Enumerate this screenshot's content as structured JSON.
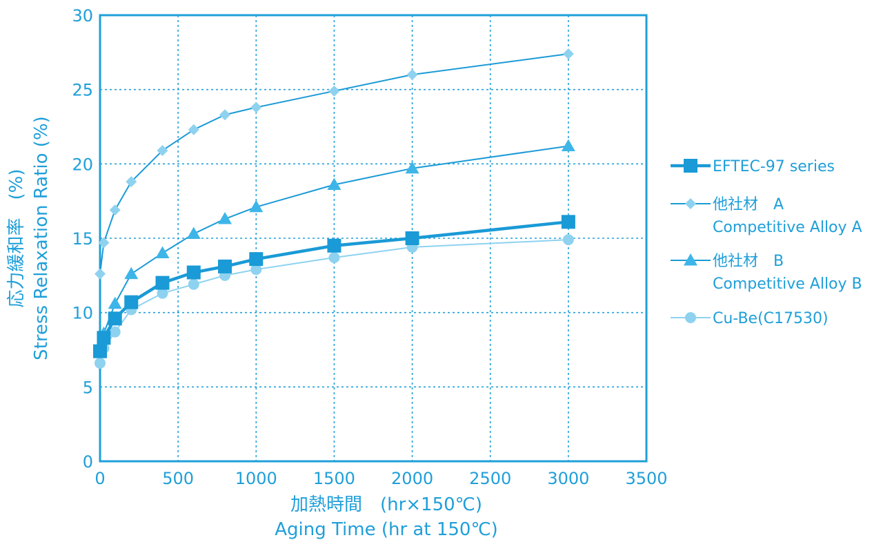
{
  "chart_data": {
    "type": "line",
    "xlabel_jp": "加熱時間　(hr×150℃)",
    "xlabel_en": "Aging Time (hr at 150℃)",
    "ylabel_jp": "応力緩和率　(%)",
    "ylabel_en": "Stress Relaxation Ratio (%)",
    "xlim": [
      0,
      3500
    ],
    "ylim": [
      0,
      30
    ],
    "x_ticks": [
      "0",
      "500",
      "1000",
      "1500",
      "2000",
      "2500",
      "3000",
      "3500"
    ],
    "y_ticks": [
      "0",
      "5",
      "10",
      "15",
      "20",
      "25",
      "30"
    ],
    "grid": true,
    "legend_position": "right",
    "series": [
      {
        "name": "EFTEC-97 series",
        "marker": "square",
        "color": "#1a9ad6",
        "x": [
          0,
          24,
          96,
          200,
          400,
          600,
          800,
          1000,
          1500,
          2000,
          3000
        ],
        "y": [
          7.4,
          8.3,
          9.6,
          10.7,
          12.0,
          12.7,
          13.1,
          13.6,
          14.5,
          15.0,
          16.1
        ]
      },
      {
        "name": "他社材　A",
        "name_en": "Competitive Alloy A",
        "marker": "diamond",
        "color": "#8ed2f0",
        "line_color": "#1a9ad6",
        "x": [
          0,
          24,
          96,
          200,
          400,
          600,
          800,
          1000,
          1500,
          2000,
          3000
        ],
        "y": [
          12.6,
          14.7,
          16.9,
          18.8,
          20.9,
          22.3,
          23.3,
          23.8,
          24.9,
          26.0,
          27.4
        ]
      },
      {
        "name": "他社材　B",
        "name_en": "Competitive Alloy B",
        "marker": "triangle",
        "color": "#3db5e8",
        "line_color": "#1a9ad6",
        "x": [
          0,
          24,
          96,
          200,
          400,
          600,
          800,
          1000,
          1500,
          2000,
          3000
        ],
        "y": [
          7.5,
          8.6,
          10.6,
          12.6,
          14.0,
          15.3,
          16.3,
          17.1,
          18.6,
          19.7,
          21.2
        ]
      },
      {
        "name": "Cu-Be(C17530)",
        "marker": "circle",
        "color": "#8ed2f0",
        "line_color": "#8ed2f0",
        "x": [
          0,
          24,
          96,
          200,
          400,
          600,
          800,
          1000,
          1500,
          2000,
          3000
        ],
        "y": [
          6.6,
          7.6,
          8.7,
          10.2,
          11.3,
          11.9,
          12.5,
          12.9,
          13.7,
          14.4,
          14.9
        ]
      }
    ]
  }
}
